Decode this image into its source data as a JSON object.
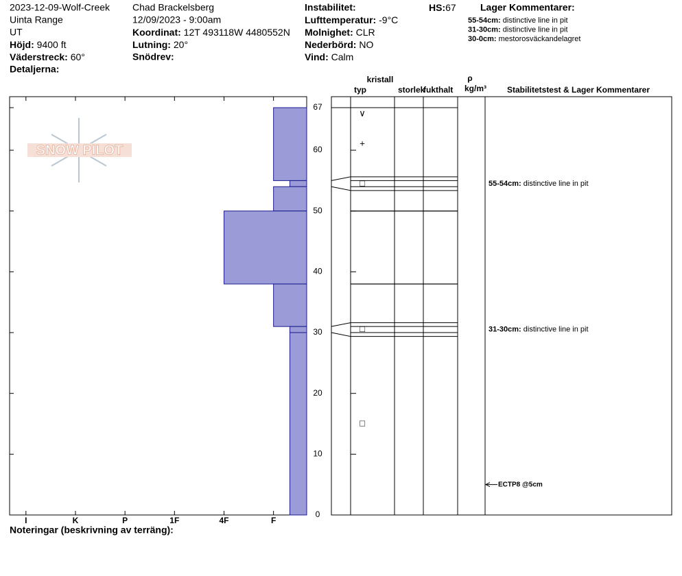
{
  "header": {
    "site": "2023-12-09-Wolf-Creek",
    "range": "Uinta Range",
    "state": "UT",
    "elevation_label": "Höjd:",
    "elevation": "9400 ft",
    "aspect_label": "Väderstreck:",
    "aspect": "60°",
    "details_label": "Detaljerna:",
    "observer": "Chad Brackelsberg",
    "datetime": "12/09/2023 - 9:00am",
    "coord_label": "Koordinat:",
    "coord": "12T 493118W 4480552N",
    "slope_label": "Lutning:",
    "slope": "20°",
    "drift_label": "Snödrev:",
    "instability_label": "Instabilitet:",
    "airtemp_label": "Lufttemperatur:",
    "airtemp": "-9°C",
    "sky_label": "Molnighet:",
    "sky": "CLR",
    "precip_label": "Nederbörd:",
    "precip": "NO",
    "wind_label": "Vind:",
    "wind": "Calm",
    "hs_label": "HS:",
    "hs": 67,
    "comments_title": "Lager Kommentarer:",
    "comments": [
      {
        "label": "55-54cm:",
        "text": "distinctive line in pit"
      },
      {
        "label": "31-30cm:",
        "text": "distinctive line in pit"
      },
      {
        "label": "30-0cm:",
        "text": "mestorosväckandelagret"
      }
    ],
    "logo": "SNOW PILOT"
  },
  "chart_data": {
    "type": "snow-profile",
    "ylim": [
      0,
      67
    ],
    "yticks": [
      0,
      10,
      20,
      30,
      40,
      50,
      60,
      67
    ],
    "xlim": [
      0.33,
      6.33
    ],
    "xticks": [
      {
        "value": 6,
        "label": "I"
      },
      {
        "value": 5,
        "label": "K"
      },
      {
        "value": 4,
        "label": "P"
      },
      {
        "value": 3,
        "label": "1F"
      },
      {
        "value": 2,
        "label": "4F"
      },
      {
        "value": 1,
        "label": "F"
      }
    ],
    "color": "#9b9bd7",
    "edge_color": "#1a1a8c",
    "layers": [
      {
        "top": 67,
        "bottom": 55,
        "hardness": 1
      },
      {
        "top": 55,
        "bottom": 54,
        "hardness": 0.67
      },
      {
        "top": 54,
        "bottom": 50,
        "hardness": 1
      },
      {
        "top": 50,
        "bottom": 38,
        "hardness": 2
      },
      {
        "top": 38,
        "bottom": 31,
        "hardness": 1
      },
      {
        "top": 31,
        "bottom": 30,
        "hardness": 0.67
      },
      {
        "top": 30,
        "bottom": 0,
        "hardness": 0.67
      }
    ],
    "grains": [
      {
        "height": 66,
        "symbol": "∨"
      },
      {
        "height": 61,
        "symbol": "+"
      },
      {
        "height": 54.5,
        "symbol": "□"
      },
      {
        "height": 30.5,
        "symbol": "□"
      },
      {
        "height": 15,
        "symbol": "□"
      }
    ],
    "layer_comments": [
      {
        "height": 54.5,
        "label": "55-54cm:",
        "text": "distinctive line in pit"
      },
      {
        "height": 30.5,
        "label": "31-30cm:",
        "text": "distinctive line in pit"
      }
    ],
    "tests": [
      {
        "height": 5,
        "label": "ECTP8 @5cm"
      }
    ],
    "columns": {
      "crystal": "kristall",
      "type": "typ",
      "size": "storlek",
      "moisture": "fukthalt",
      "rho": "ρ",
      "density_unit": "kg/m³",
      "comments": "Stabilitetstest & Lager Kommentarer"
    },
    "notes_label": "Noteringar (beskrivning av terräng):"
  }
}
